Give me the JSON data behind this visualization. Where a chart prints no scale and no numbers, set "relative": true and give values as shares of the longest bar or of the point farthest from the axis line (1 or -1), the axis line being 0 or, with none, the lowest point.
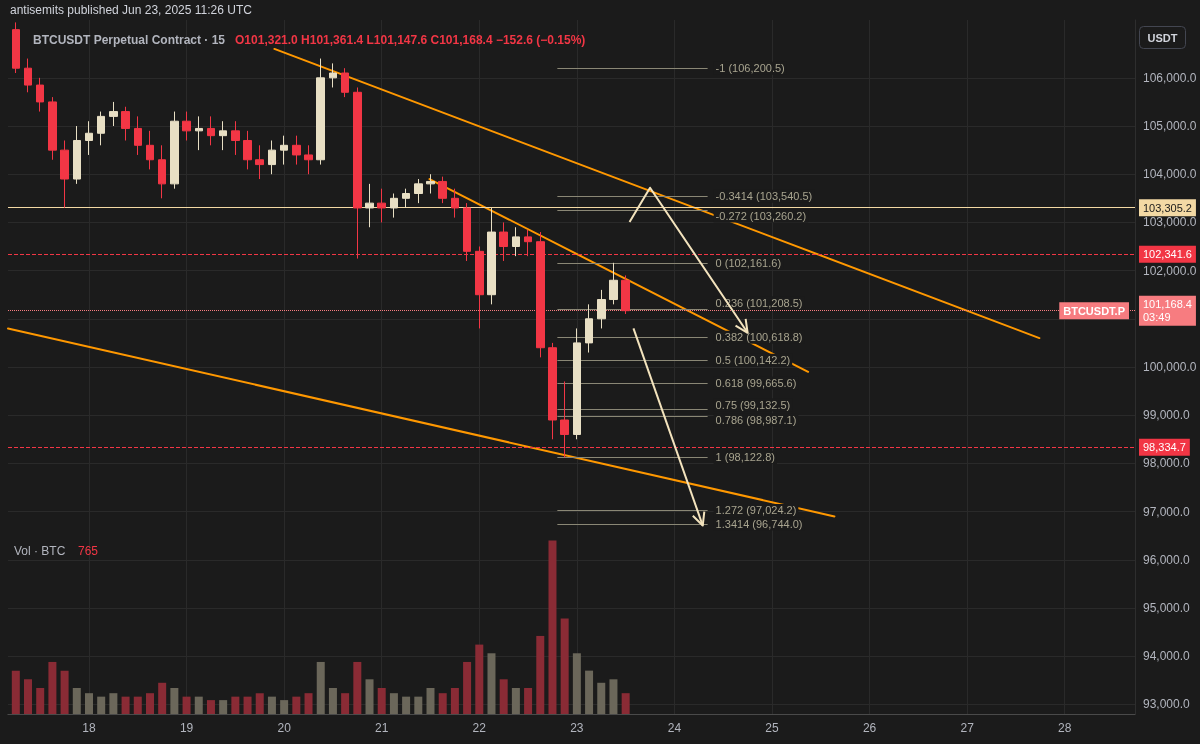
{
  "chart_data": [
    {
      "type": "candlestick",
      "title": "BTCUSDT Perpetual Contract · 15",
      "subtitle": "O101,321.0 H101,361.4 L101,147.6 C101,168.4 −152.6 (−0.15%)",
      "ylabel": "USDT",
      "x": [
        17.25,
        17.375,
        17.5,
        17.625,
        17.75,
        17.875,
        18,
        18.125,
        18.25,
        18.375,
        18.5,
        18.625,
        18.75,
        18.875,
        19,
        19.125,
        19.25,
        19.375,
        19.5,
        19.625,
        19.75,
        19.875,
        20,
        20.125,
        20.25,
        20.375,
        20.5,
        20.625,
        20.75,
        20.875,
        21,
        21.125,
        21.25,
        21.375,
        21.5,
        21.625,
        21.75,
        21.875,
        22,
        22.125,
        22.25,
        22.375,
        22.5,
        22.625,
        22.75,
        22.875,
        23,
        23.125,
        23.25,
        23.375,
        23.5
      ],
      "series": [
        {
          "ohlc": [
            [
              107000,
              107150,
              106100,
              106200
            ],
            [
              106200,
              106400,
              105700,
              105850
            ],
            [
              105850,
              106000,
              105300,
              105500
            ],
            [
              105500,
              105600,
              104300,
              104500
            ],
            [
              104500,
              104700,
              103305,
              103900
            ],
            [
              103900,
              105000,
              103800,
              104700
            ],
            [
              104700,
              105100,
              104400,
              104850
            ],
            [
              104850,
              105300,
              104600,
              105200
            ],
            [
              105200,
              105500,
              105000,
              105300
            ],
            [
              105300,
              105400,
              104700,
              104950
            ],
            [
              104950,
              105200,
              104400,
              104600
            ],
            [
              104600,
              104900,
              104100,
              104300
            ],
            [
              104300,
              104600,
              103500,
              103800
            ],
            [
              103800,
              105300,
              103700,
              105100
            ],
            [
              105100,
              105300,
              104700,
              104900
            ],
            [
              104900,
              105200,
              104500,
              104950
            ],
            [
              104950,
              105200,
              104600,
              104800
            ],
            [
              104800,
              105100,
              104500,
              104900
            ],
            [
              104900,
              105100,
              104400,
              104700
            ],
            [
              104700,
              104900,
              104100,
              104300
            ],
            [
              104300,
              104600,
              103900,
              104200
            ],
            [
              104200,
              104700,
              104000,
              104500
            ],
            [
              104500,
              104800,
              104200,
              104600
            ],
            [
              104600,
              104800,
              104200,
              104400
            ],
            [
              104400,
              104600,
              104000,
              104300
            ],
            [
              104300,
              106400,
              104200,
              106000
            ],
            [
              106000,
              106300,
              105800,
              106100
            ],
            [
              106100,
              106200,
              105600,
              105700
            ],
            [
              105700,
              105800,
              102250,
              103300
            ],
            [
              103300,
              103800,
              102900,
              103400
            ],
            [
              103400,
              103700,
              103000,
              103300
            ],
            [
              103300,
              103600,
              103100,
              103500
            ],
            [
              103500,
              103700,
              103300,
              103600
            ],
            [
              103600,
              103900,
              103400,
              103800
            ],
            [
              103800,
              104000,
              103600,
              103850
            ],
            [
              103850,
              103950,
              103400,
              103500
            ],
            [
              103500,
              103700,
              103100,
              103300
            ],
            [
              103300,
              103400,
              102200,
              102400
            ],
            [
              102400,
              102500,
              100800,
              101500
            ],
            [
              101500,
              103300,
              101300,
              102800
            ],
            [
              102800,
              103000,
              102200,
              102500
            ],
            [
              102500,
              102900,
              102300,
              102700
            ],
            [
              102700,
              102850,
              102300,
              102600
            ],
            [
              102600,
              102800,
              100200,
              100400
            ],
            [
              100400,
              100500,
              98500,
              98900
            ],
            [
              98900,
              99700,
              98122.8,
              98600
            ],
            [
              98600,
              100800,
              98500,
              100500
            ],
            [
              100500,
              101300,
              100300,
              101000
            ],
            [
              101000,
              101600,
              100800,
              101400
            ],
            [
              101400,
              102161.6,
              101300,
              101800
            ],
            [
              101800,
              101900,
              101100,
              101168.4
            ]
          ],
          "colors": [
            "#f23645",
            "#f23645",
            "#f23645",
            "#f23645",
            "#f23645",
            "#e8dfc4",
            "#e8dfc4",
            "#e8dfc4",
            "#e8dfc4",
            "#f23645",
            "#f23645",
            "#f23645",
            "#f23645",
            "#e8dfc4",
            "#f23645",
            "#e8dfc4",
            "#f23645",
            "#e8dfc4",
            "#f23645",
            "#f23645",
            "#f23645",
            "#e8dfc4",
            "#e8dfc4",
            "#f23645",
            "#f23645",
            "#e8dfc4",
            "#e8dfc4",
            "#f23645",
            "#f23645",
            "#e8dfc4",
            "#f23645",
            "#e8dfc4",
            "#e8dfc4",
            "#e8dfc4",
            "#e8dfc4",
            "#f23645",
            "#f23645",
            "#f23645",
            "#f23645",
            "#e8dfc4",
            "#f23645",
            "#e8dfc4",
            "#f23645",
            "#f23645",
            "#f23645",
            "#f23645",
            "#e8dfc4",
            "#e8dfc4",
            "#e8dfc4",
            "#e8dfc4",
            "#f23645"
          ]
        },
        {
          "type": "line",
          "color": "#ff9800",
          "x": [
            19.9,
            27.74
          ],
          "values": [
            106600,
            100600
          ]
        },
        {
          "type": "line",
          "color": "#ff9800",
          "x": [
            21.49,
            25.37
          ],
          "values": [
            103900,
            99900
          ]
        },
        {
          "type": "line",
          "color": "#ff9800",
          "x": [
            17.17,
            25.64
          ],
          "values": [
            100800,
            96900
          ]
        }
      ],
      "xlim": [
        17.17,
        28.72
      ],
      "xticks": [
        18,
        19,
        20,
        21,
        22,
        23,
        24,
        25,
        26,
        27,
        28
      ],
      "ylim": [
        92800,
        107200
      ],
      "yticks": [
        {
          "value": 93000,
          "label": "93,000.0"
        },
        {
          "value": 94000,
          "label": "94,000.0"
        },
        {
          "value": 95000,
          "label": "95,000.0"
        },
        {
          "value": 96000,
          "label": "96,000.0"
        },
        {
          "value": 97000,
          "label": "97,000.0"
        },
        {
          "value": 98000,
          "label": "98,000.0"
        },
        {
          "value": 99000,
          "label": "99,000.0"
        },
        {
          "value": 100000,
          "label": "100,000.0"
        },
        {
          "value": 101000,
          "label": null
        },
        {
          "value": 102000,
          "label": "102,000.0"
        },
        {
          "value": 103000,
          "label": "103,000.0"
        },
        {
          "value": 104000,
          "label": "104,000.0"
        },
        {
          "value": 105000,
          "label": "105,000.0"
        },
        {
          "value": 106000,
          "label": "106,000.0"
        }
      ],
      "grid": true,
      "marker": "none",
      "line_style": "solid",
      "ref_lines": [
        {
          "axis": "y",
          "value": 103305.2,
          "label": "103,305.2",
          "color": "#f3d9a4",
          "line_style": "solid"
        },
        {
          "axis": "y",
          "value": 102341.6,
          "label": "102,341.6",
          "color": "#f23645",
          "line_style": "dashed"
        },
        {
          "axis": "y",
          "value": 101168.4,
          "label": "101,168.4\n03:49",
          "color": "#f77c80",
          "line_style": "dotted"
        },
        {
          "axis": "y",
          "value": 98334.7,
          "label": "98,334.7",
          "color": "#f23645",
          "line_style": "dashed"
        },
        {
          "axis": "y",
          "value": 106200.5,
          "label": "-1 (106,200.5)"
        },
        {
          "axis": "y",
          "value": 103540.5,
          "label": "-0.3414 (103,540.5)"
        },
        {
          "axis": "y",
          "value": 103260.2,
          "label": "-0.272 (103,260.2)"
        },
        {
          "axis": "y",
          "value": 102161.6,
          "label": "0 (102,161.6)"
        },
        {
          "axis": "y",
          "value": 101208.5,
          "label": "0.236 (101,208.5)"
        },
        {
          "axis": "y",
          "value": 100618.8,
          "label": "0.382 (100,618.8)"
        },
        {
          "axis": "y",
          "value": 100142.2,
          "label": "0.5 (100,142.2)"
        },
        {
          "axis": "y",
          "value": 99665.6,
          "label": "0.618 (99,665.6)"
        },
        {
          "axis": "y",
          "value": 99132.5,
          "label": "0.75 (99,132.5)"
        },
        {
          "axis": "y",
          "value": 98987.1,
          "label": "0.786 (98,987.1)"
        },
        {
          "axis": "y",
          "value": 98122.8,
          "label": "1 (98,122.8)"
        },
        {
          "axis": "y",
          "value": 97024.2,
          "label": "1.272 (97,024.2)"
        },
        {
          "axis": "y",
          "value": 96744.0,
          "label": "1.3414 (96,744.0)"
        }
      ],
      "annotations": [
        "antisemits published Jun 23, 2025 11:26 UTC",
        {
          "text": "BTCUSDT.P",
          "y": 101168.4
        }
      ]
    },
    {
      "type": "bar",
      "relative": true,
      "ylabel": "Vol · BTC",
      "xlim": [
        17.17,
        28.72
      ],
      "x": [
        17.25,
        17.375,
        17.5,
        17.625,
        17.75,
        17.875,
        18,
        18.125,
        18.25,
        18.375,
        18.5,
        18.625,
        18.75,
        18.875,
        19,
        19.125,
        19.25,
        19.375,
        19.5,
        19.625,
        19.75,
        19.875,
        20,
        20.125,
        20.25,
        20.375,
        20.5,
        20.625,
        20.75,
        20.875,
        21,
        21.125,
        21.25,
        21.375,
        21.5,
        21.625,
        21.75,
        21.875,
        22,
        22.125,
        22.25,
        22.375,
        22.5,
        22.625,
        22.75,
        22.875,
        23,
        23.125,
        23.25,
        23.375,
        23.5
      ],
      "values": [
        0.25,
        0.2,
        0.15,
        0.3,
        0.25,
        0.15,
        0.12,
        0.1,
        0.12,
        0.1,
        0.1,
        0.12,
        0.18,
        0.15,
        0.1,
        0.1,
        0.08,
        0.08,
        0.1,
        0.1,
        0.12,
        0.1,
        0.08,
        0.1,
        0.12,
        0.3,
        0.15,
        0.12,
        0.3,
        0.2,
        0.15,
        0.12,
        0.1,
        0.1,
        0.15,
        0.12,
        0.15,
        0.3,
        0.4,
        0.35,
        0.2,
        0.15,
        0.15,
        0.45,
        1,
        0.55,
        0.35,
        0.25,
        0.18,
        0.2,
        0.12
      ],
      "colors": [
        "#8a2b35",
        "#8a2b35",
        "#8a2b35",
        "#8a2b35",
        "#8a2b35",
        "#6b675a",
        "#6b675a",
        "#6b675a",
        "#6b675a",
        "#8a2b35",
        "#8a2b35",
        "#8a2b35",
        "#8a2b35",
        "#6b675a",
        "#8a2b35",
        "#6b675a",
        "#8a2b35",
        "#6b675a",
        "#8a2b35",
        "#8a2b35",
        "#8a2b35",
        "#6b675a",
        "#6b675a",
        "#8a2b35",
        "#8a2b35",
        "#6b675a",
        "#6b675a",
        "#8a2b35",
        "#8a2b35",
        "#6b675a",
        "#8a2b35",
        "#6b675a",
        "#6b675a",
        "#6b675a",
        "#6b675a",
        "#8a2b35",
        "#8a2b35",
        "#8a2b35",
        "#8a2b35",
        "#6b675a",
        "#8a2b35",
        "#6b675a",
        "#8a2b35",
        "#8a2b35",
        "#8a2b35",
        "#8a2b35",
        "#6b675a",
        "#6b675a",
        "#6b675a",
        "#6b675a",
        "#8a2b35"
      ],
      "annotations": [
        "765"
      ]
    }
  ]
}
